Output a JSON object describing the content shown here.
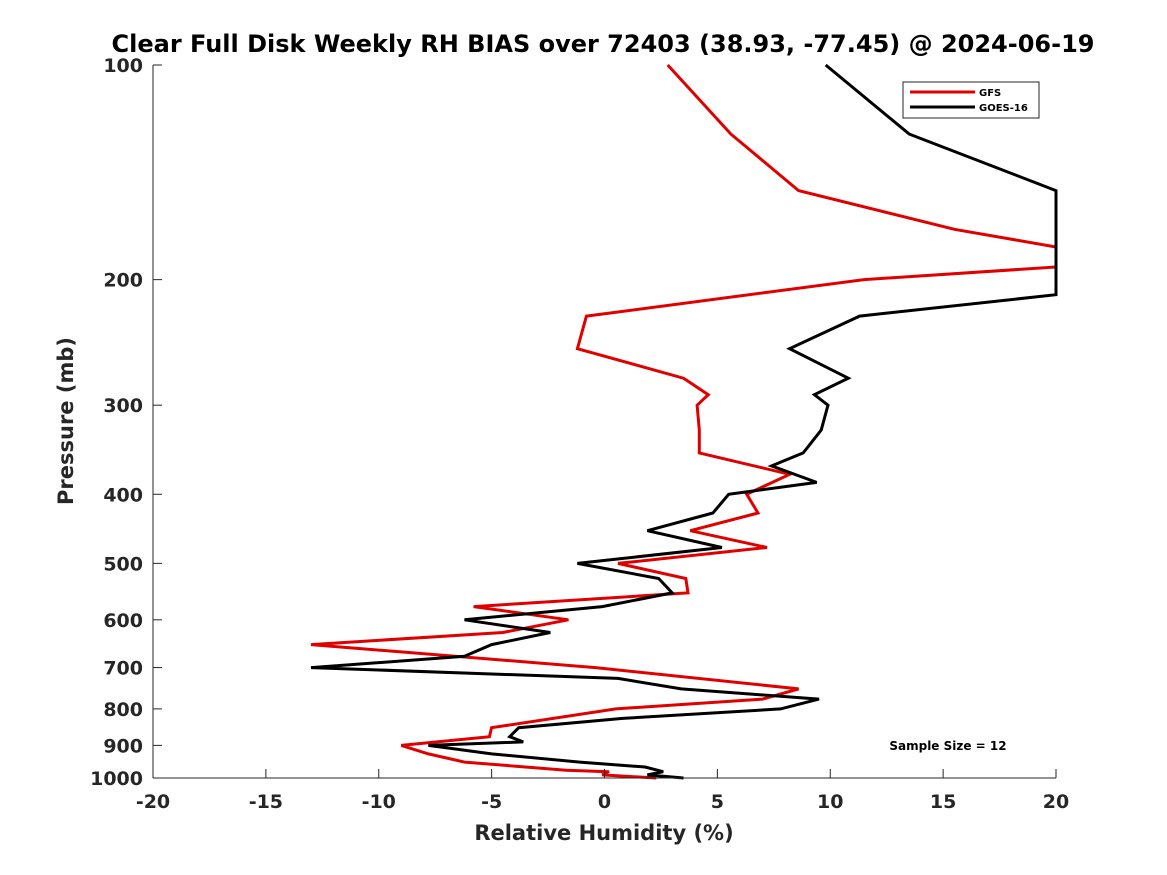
{
  "chart_data": {
    "type": "line",
    "title": "Clear Full Disk Weekly RH BIAS over 72403 (38.93, -77.45) @ 2024-06-19",
    "xlabel": "Relative Humidity (%)",
    "ylabel": "Pressure (mb)",
    "xlim": [
      -20,
      20
    ],
    "ylim": [
      100,
      1000
    ],
    "y_scale": "log",
    "y_reversed": true,
    "x_ticks": [
      -20,
      -15,
      -10,
      -5,
      0,
      5,
      10,
      15,
      20
    ],
    "y_ticks": [
      100,
      200,
      300,
      400,
      500,
      600,
      700,
      800,
      900,
      1000
    ],
    "grid": false,
    "legend_position": "top-right",
    "annotation": "Sample Size = 12",
    "series": [
      {
        "name": "GFS",
        "color": "#e00000",
        "points": [
          {
            "x": 2.8,
            "y": 100
          },
          {
            "x": 5.6,
            "y": 125
          },
          {
            "x": 8.6,
            "y": 150
          },
          {
            "x": 15.5,
            "y": 170
          },
          {
            "x": 20,
            "y": 180
          },
          {
            "x": 20,
            "y": 192
          },
          {
            "x": 11.5,
            "y": 200
          },
          {
            "x": -0.8,
            "y": 225
          },
          {
            "x": -1.2,
            "y": 250
          },
          {
            "x": 3.5,
            "y": 275
          },
          {
            "x": 4.6,
            "y": 290
          },
          {
            "x": 4.1,
            "y": 300
          },
          {
            "x": 4.2,
            "y": 325
          },
          {
            "x": 4.2,
            "y": 350
          },
          {
            "x": 8.2,
            "y": 375
          },
          {
            "x": 6.3,
            "y": 400
          },
          {
            "x": 6.8,
            "y": 425
          },
          {
            "x": 3.8,
            "y": 450
          },
          {
            "x": 7.2,
            "y": 475
          },
          {
            "x": 0.6,
            "y": 500
          },
          {
            "x": 3.6,
            "y": 525
          },
          {
            "x": 3.7,
            "y": 550
          },
          {
            "x": -5.8,
            "y": 575
          },
          {
            "x": -1.6,
            "y": 600
          },
          {
            "x": -4.5,
            "y": 625
          },
          {
            "x": -13,
            "y": 650
          },
          {
            "x": -0.4,
            "y": 700
          },
          {
            "x": 8.6,
            "y": 750
          },
          {
            "x": 7.0,
            "y": 775
          },
          {
            "x": 0.5,
            "y": 800
          },
          {
            "x": -5.0,
            "y": 850
          },
          {
            "x": -5.1,
            "y": 875
          },
          {
            "x": -9.0,
            "y": 900
          },
          {
            "x": -7.8,
            "y": 925
          },
          {
            "x": -6.2,
            "y": 950
          },
          {
            "x": -1.7,
            "y": 975
          },
          {
            "x": 0.2,
            "y": 980
          },
          {
            "x": -0.1,
            "y": 990
          },
          {
            "x": 2.3,
            "y": 1000
          }
        ]
      },
      {
        "name": "GOES-16",
        "color": "#000000",
        "points": [
          {
            "x": 9.8,
            "y": 100
          },
          {
            "x": 13.5,
            "y": 125
          },
          {
            "x": 20,
            "y": 150
          },
          {
            "x": 20,
            "y": 210
          },
          {
            "x": 11.3,
            "y": 225
          },
          {
            "x": 8.2,
            "y": 250
          },
          {
            "x": 10.8,
            "y": 275
          },
          {
            "x": 9.3,
            "y": 290
          },
          {
            "x": 9.9,
            "y": 300
          },
          {
            "x": 9.6,
            "y": 325
          },
          {
            "x": 8.8,
            "y": 350
          },
          {
            "x": 7.4,
            "y": 365
          },
          {
            "x": 9.4,
            "y": 385
          },
          {
            "x": 5.5,
            "y": 400
          },
          {
            "x": 4.8,
            "y": 425
          },
          {
            "x": 1.9,
            "y": 450
          },
          {
            "x": 5.2,
            "y": 475
          },
          {
            "x": -1.2,
            "y": 500
          },
          {
            "x": 2.4,
            "y": 525
          },
          {
            "x": 3.0,
            "y": 550
          },
          {
            "x": -0.1,
            "y": 575
          },
          {
            "x": -6.2,
            "y": 600
          },
          {
            "x": -2.4,
            "y": 625
          },
          {
            "x": -5.0,
            "y": 650
          },
          {
            "x": -6.2,
            "y": 675
          },
          {
            "x": -13,
            "y": 700
          },
          {
            "x": 0.6,
            "y": 725
          },
          {
            "x": 3.4,
            "y": 750
          },
          {
            "x": 9.5,
            "y": 775
          },
          {
            "x": 7.8,
            "y": 800
          },
          {
            "x": 0.8,
            "y": 825
          },
          {
            "x": -3.8,
            "y": 850
          },
          {
            "x": -4.2,
            "y": 875
          },
          {
            "x": -3.6,
            "y": 890
          },
          {
            "x": -7.8,
            "y": 900
          },
          {
            "x": -5.0,
            "y": 925
          },
          {
            "x": -1.1,
            "y": 950
          },
          {
            "x": 1.8,
            "y": 965
          },
          {
            "x": 2.6,
            "y": 980
          },
          {
            "x": 1.9,
            "y": 990
          },
          {
            "x": 3.5,
            "y": 1000
          }
        ]
      }
    ]
  }
}
